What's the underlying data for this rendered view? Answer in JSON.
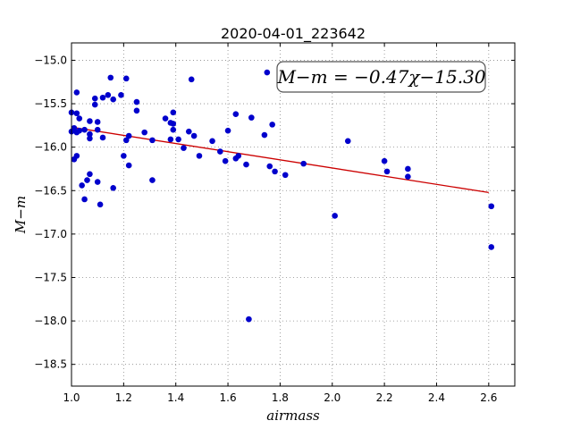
{
  "chart_data": {
    "type": "scatter",
    "title": "2020-04-01_223642",
    "xlabel": "airmass",
    "ylabel": "M−m",
    "xlim": [
      1.0,
      2.7
    ],
    "ylim": [
      -18.75,
      -14.8
    ],
    "y_inverted": true,
    "grid": true,
    "x_ticks": [
      "1.0",
      "1.2",
      "1.4",
      "1.6",
      "1.8",
      "2.0",
      "2.2",
      "2.4",
      "2.6"
    ],
    "y_ticks": [
      "−15.0",
      "−15.5",
      "−16.0",
      "−16.5",
      "−17.0",
      "−17.5",
      "−18.0",
      "−18.5"
    ],
    "annotation": "M−m = −0.47χ−15.30",
    "fit": {
      "slope": -0.47,
      "intercept": -15.3,
      "x_range": [
        1.0,
        2.6
      ],
      "color": "#cc0000"
    },
    "point_color": "#0000cc",
    "points": [
      {
        "x": 1.0,
        "y": -15.6
      },
      {
        "x": 1.0,
        "y": -15.82
      },
      {
        "x": 1.01,
        "y": -16.14
      },
      {
        "x": 1.01,
        "y": -15.78
      },
      {
        "x": 1.02,
        "y": -15.37
      },
      {
        "x": 1.02,
        "y": -15.61
      },
      {
        "x": 1.02,
        "y": -15.83
      },
      {
        "x": 1.02,
        "y": -16.1
      },
      {
        "x": 1.03,
        "y": -15.67
      },
      {
        "x": 1.03,
        "y": -15.81
      },
      {
        "x": 1.04,
        "y": -16.44
      },
      {
        "x": 1.05,
        "y": -15.8
      },
      {
        "x": 1.05,
        "y": -16.6
      },
      {
        "x": 1.06,
        "y": -16.38
      },
      {
        "x": 1.07,
        "y": -16.31
      },
      {
        "x": 1.07,
        "y": -15.7
      },
      {
        "x": 1.07,
        "y": -15.85
      },
      {
        "x": 1.07,
        "y": -15.9
      },
      {
        "x": 1.09,
        "y": -15.44
      },
      {
        "x": 1.09,
        "y": -15.51
      },
      {
        "x": 1.1,
        "y": -15.71
      },
      {
        "x": 1.1,
        "y": -15.8
      },
      {
        "x": 1.1,
        "y": -16.4
      },
      {
        "x": 1.11,
        "y": -16.66
      },
      {
        "x": 1.12,
        "y": -15.89
      },
      {
        "x": 1.12,
        "y": -15.43
      },
      {
        "x": 1.14,
        "y": -15.4
      },
      {
        "x": 1.15,
        "y": -15.2
      },
      {
        "x": 1.16,
        "y": -15.45
      },
      {
        "x": 1.16,
        "y": -16.47
      },
      {
        "x": 1.19,
        "y": -15.4
      },
      {
        "x": 1.2,
        "y": -16.1
      },
      {
        "x": 1.21,
        "y": -15.21
      },
      {
        "x": 1.21,
        "y": -15.92
      },
      {
        "x": 1.22,
        "y": -16.21
      },
      {
        "x": 1.22,
        "y": -15.87
      },
      {
        "x": 1.25,
        "y": -15.48
      },
      {
        "x": 1.25,
        "y": -15.58
      },
      {
        "x": 1.28,
        "y": -15.83
      },
      {
        "x": 1.31,
        "y": -16.38
      },
      {
        "x": 1.31,
        "y": -15.92
      },
      {
        "x": 1.36,
        "y": -15.67
      },
      {
        "x": 1.38,
        "y": -15.72
      },
      {
        "x": 1.38,
        "y": -15.91
      },
      {
        "x": 1.39,
        "y": -15.6
      },
      {
        "x": 1.39,
        "y": -15.73
      },
      {
        "x": 1.39,
        "y": -15.8
      },
      {
        "x": 1.41,
        "y": -15.91
      },
      {
        "x": 1.43,
        "y": -16.01
      },
      {
        "x": 1.45,
        "y": -15.82
      },
      {
        "x": 1.46,
        "y": -15.22
      },
      {
        "x": 1.47,
        "y": -15.87
      },
      {
        "x": 1.49,
        "y": -16.1
      },
      {
        "x": 1.54,
        "y": -15.93
      },
      {
        "x": 1.57,
        "y": -16.05
      },
      {
        "x": 1.59,
        "y": -16.16
      },
      {
        "x": 1.6,
        "y": -15.81
      },
      {
        "x": 1.63,
        "y": -16.13
      },
      {
        "x": 1.63,
        "y": -15.62
      },
      {
        "x": 1.64,
        "y": -16.1
      },
      {
        "x": 1.67,
        "y": -16.2
      },
      {
        "x": 1.68,
        "y": -17.98
      },
      {
        "x": 1.69,
        "y": -15.66
      },
      {
        "x": 1.74,
        "y": -15.86
      },
      {
        "x": 1.75,
        "y": -15.14
      },
      {
        "x": 1.76,
        "y": -16.22
      },
      {
        "x": 1.77,
        "y": -15.74
      },
      {
        "x": 1.78,
        "y": -16.28
      },
      {
        "x": 1.82,
        "y": -16.32
      },
      {
        "x": 1.89,
        "y": -16.19
      },
      {
        "x": 2.01,
        "y": -16.79
      },
      {
        "x": 2.06,
        "y": -15.93
      },
      {
        "x": 2.2,
        "y": -16.16
      },
      {
        "x": 2.21,
        "y": -16.28
      },
      {
        "x": 2.29,
        "y": -16.25
      },
      {
        "x": 2.29,
        "y": -16.34
      },
      {
        "x": 2.61,
        "y": -16.68
      },
      {
        "x": 2.61,
        "y": -17.15
      }
    ]
  }
}
